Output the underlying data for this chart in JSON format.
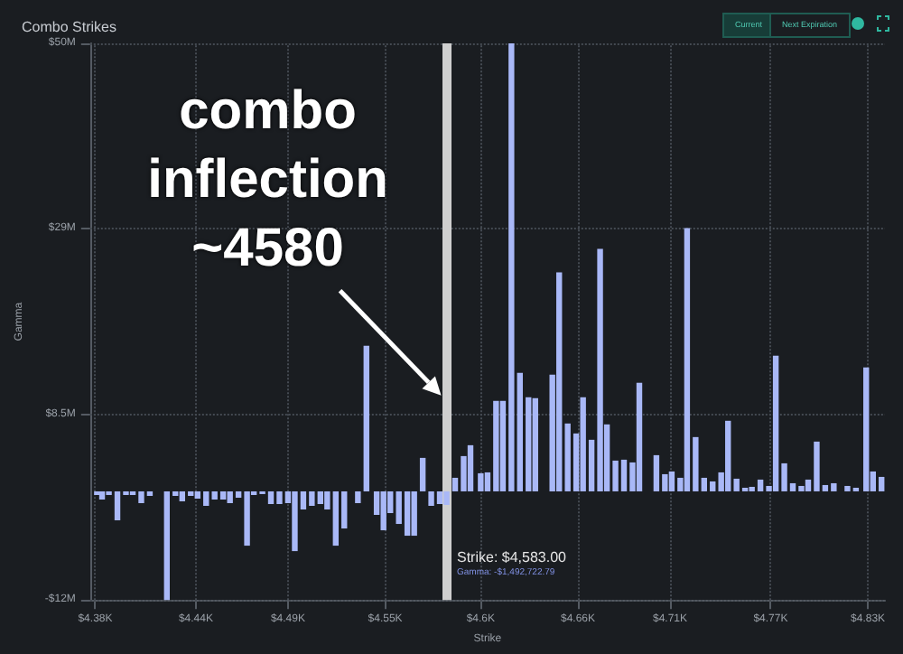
{
  "chart_data": {
    "type": "bar",
    "title": "Combo Strikes",
    "xlabel": "Strike",
    "ylabel": "Gamma",
    "x": [
      4378,
      4381,
      4385,
      4390,
      4395,
      4399,
      4404,
      4409,
      4419,
      4424,
      4428,
      4433,
      4437,
      4442,
      4447,
      4452,
      4456,
      4461,
      4466,
      4470,
      4475,
      4480,
      4485,
      4490,
      4494,
      4499,
      4504,
      4509,
      4513,
      4518,
      4523,
      4531,
      4536,
      4542,
      4546,
      4550,
      4555,
      4560,
      4564,
      4569,
      4574,
      4579,
      4583,
      4588,
      4593,
      4597,
      4603,
      4607,
      4612,
      4616,
      4621,
      4626,
      4631,
      4635,
      4645,
      4649,
      4654,
      4659,
      4663,
      4668,
      4673,
      4677,
      4682,
      4687,
      4692,
      4696,
      4706,
      4711,
      4715,
      4720,
      4724,
      4729,
      4734,
      4739,
      4744,
      4748,
      4753,
      4758,
      4762,
      4767,
      4772,
      4776,
      4781,
      4786,
      4791,
      4795,
      4800,
      4805,
      4810,
      4818,
      4823,
      4829,
      4833,
      4838
    ],
    "values": [
      -0.4,
      -0.9,
      -0.4,
      -3.2,
      -0.4,
      -0.4,
      -1.3,
      -0.5,
      -12,
      -0.5,
      -1.1,
      -0.5,
      -0.8,
      -1.6,
      -0.9,
      -0.9,
      -1.3,
      -0.7,
      -6.0,
      -0.4,
      -0.3,
      -1.4,
      -1.4,
      -1.3,
      -6.6,
      -2.0,
      -1.6,
      -1.4,
      -2.0,
      -6.0,
      -4.1,
      -1.3,
      16.1,
      -2.6,
      -4.3,
      -2.4,
      -3.6,
      -4.9,
      -4.9,
      3.7,
      -1.6,
      -1.4,
      -1.5,
      1.5,
      3.9,
      5.1,
      2.0,
      2.1,
      10.0,
      10.0,
      49.5,
      13.1,
      10.4,
      10.3,
      12.9,
      24.2,
      7.5,
      6.4,
      10.4,
      5.7,
      26.8,
      7.4,
      3.4,
      3.5,
      3.2,
      12.0,
      4.0,
      1.9,
      2.2,
      1.5,
      29.1,
      6.0,
      1.5,
      1.1,
      2.1,
      7.8,
      1.4,
      0.4,
      0.5,
      1.3,
      0.6,
      15.0,
      3.1,
      0.9,
      0.6,
      1.3,
      5.5,
      0.7,
      0.9,
      0.6,
      0.4,
      13.7,
      2.2,
      1.6
    ],
    "color": "#a9b8f7",
    "xlim": [
      4374,
      4840
    ],
    "xticks": [
      {
        "value": 4377,
        "label": "$4.38K"
      },
      {
        "value": 4436,
        "label": "$4.44K"
      },
      {
        "value": 4490,
        "label": "$4.49K"
      },
      {
        "value": 4547,
        "label": "$4.55K"
      },
      {
        "value": 4603,
        "label": "$4.6K"
      },
      {
        "value": 4660,
        "label": "$4.66K"
      },
      {
        "value": 4714,
        "label": "$4.71K"
      },
      {
        "value": 4773,
        "label": "$4.77K"
      },
      {
        "value": 4830,
        "label": "$4.83K"
      }
    ],
    "ylim": [
      -12,
      49.5
    ],
    "yticks": [
      {
        "value": -12,
        "label": "-$12M"
      },
      {
        "value": 8.5,
        "label": "$8.5M"
      },
      {
        "value": 29,
        "label": "$29M"
      },
      {
        "value": 49.5,
        "label": "$50M"
      }
    ],
    "grid": true,
    "ref_lines": [
      {
        "axis": "x",
        "value": 4583,
        "color": "#cfcfcf"
      }
    ],
    "annotations": [
      {
        "text": "combo inflection ~4580",
        "x": 4583,
        "y": 10.2
      },
      "Current",
      "Next Expiration",
      "Strike: $4,583.00",
      "Gamma: -$1,492,722.79"
    ]
  }
}
